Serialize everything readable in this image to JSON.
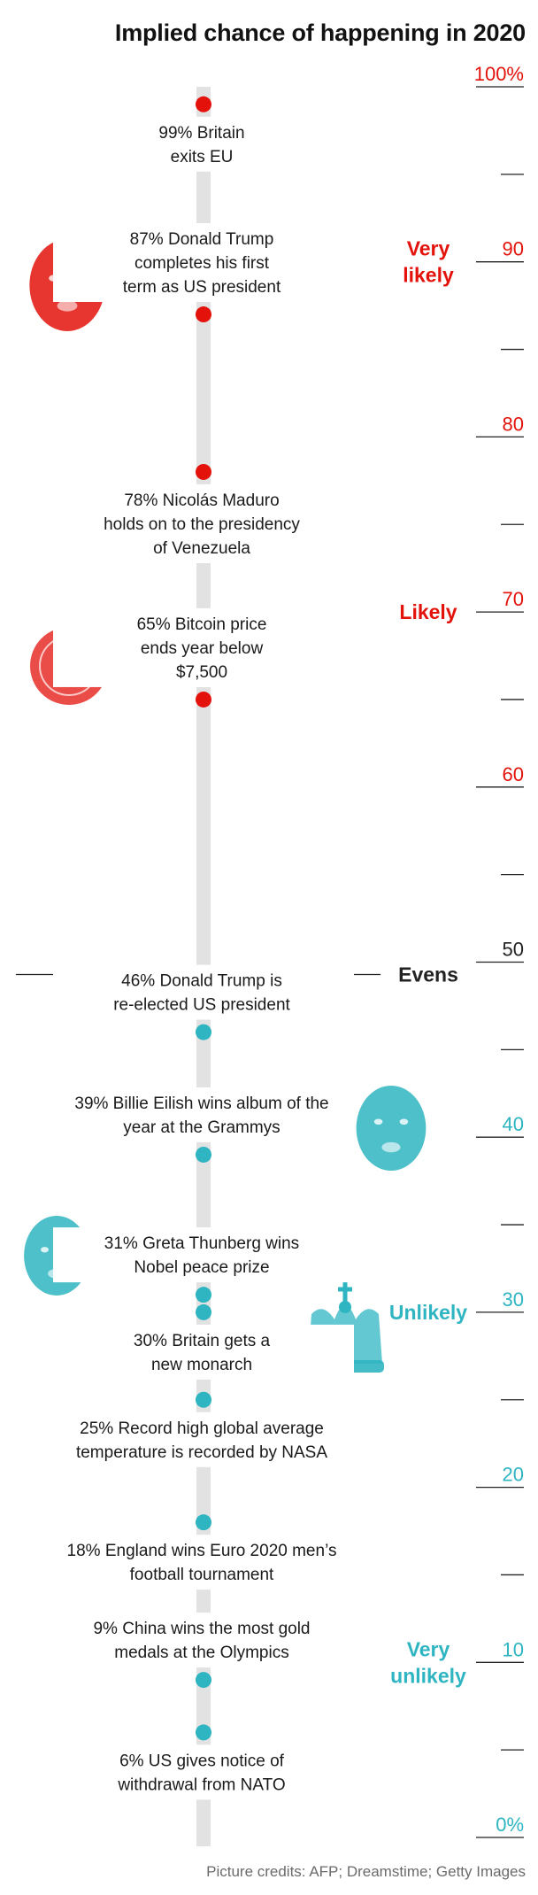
{
  "header": {
    "title": "Implied chance of happening in 2020",
    "credit": "Picture credits: AFP; Dreamstime; Getty Images"
  },
  "colors": {
    "likely": "#e3120b",
    "unlikely": "#2fb5c1",
    "track": "#e2e2e2",
    "axis": "#222222"
  },
  "icons": [
    "donald-trump-photo",
    "bitcoin-coin-photo",
    "billie-eilish-photo",
    "greta-thunberg-photo",
    "crown-photo"
  ],
  "chart_data": {
    "type": "scatter",
    "title": "Implied chance of happening in 2020",
    "ylim": [
      0,
      100
    ],
    "y_ticks": [
      {
        "value": 100,
        "label": "100%"
      },
      {
        "value": 90,
        "label": "90"
      },
      {
        "value": 80,
        "label": "80"
      },
      {
        "value": 70,
        "label": "70"
      },
      {
        "value": 60,
        "label": "60"
      },
      {
        "value": 50,
        "label": "50"
      },
      {
        "value": 40,
        "label": "40"
      },
      {
        "value": 30,
        "label": "30"
      },
      {
        "value": 20,
        "label": "20"
      },
      {
        "value": 10,
        "label": "10"
      },
      {
        "value": 0,
        "label": "0%"
      }
    ],
    "minor_ticks": [
      95,
      85,
      75,
      65,
      55,
      45,
      35,
      25,
      15,
      5
    ],
    "bands": [
      {
        "label": [
          "Very",
          "likely"
        ],
        "value": 90,
        "color": "likely"
      },
      {
        "label": [
          "Likely"
        ],
        "value": 70,
        "color": "likely"
      },
      {
        "label": [
          "Evens"
        ],
        "value": 50,
        "color": "axis"
      },
      {
        "label": [
          "Unlikely"
        ],
        "value": 30,
        "color": "unlikely"
      },
      {
        "label": [
          "Very",
          "unlikely"
        ],
        "value": 10,
        "color": "unlikely"
      }
    ],
    "events": [
      {
        "value": 99,
        "lines": [
          "99% Britain",
          "exits EU"
        ],
        "side": "below"
      },
      {
        "value": 87,
        "lines": [
          "87% Donald Trump",
          "completes his first",
          "term as US president"
        ],
        "side": "above"
      },
      {
        "value": 78,
        "lines": [
          "78% Nicolás Maduro",
          "holds on to the presidency",
          "of Venezuela"
        ],
        "side": "below"
      },
      {
        "value": 65,
        "lines": [
          "65% Bitcoin price",
          "ends year below",
          "$7,500"
        ],
        "side": "above"
      },
      {
        "value": 46,
        "lines": [
          "46% Donald Trump is",
          "re-elected US president"
        ],
        "side": "above"
      },
      {
        "value": 39,
        "lines": [
          "39% Billie Eilish wins album of the",
          "year at the Grammys"
        ],
        "side": "above"
      },
      {
        "value": 31,
        "lines": [
          "31% Greta Thunberg wins",
          "Nobel peace prize"
        ],
        "side": "above"
      },
      {
        "value": 30,
        "lines": [
          "30% Britain gets a",
          "new monarch"
        ],
        "side": "below"
      },
      {
        "value": 25,
        "lines": [
          "25% Record high global average",
          "temperature is recorded by NASA"
        ],
        "side": "below"
      },
      {
        "value": 18,
        "lines": [
          "18% England wins Euro 2020 men’s",
          "football tournament"
        ],
        "side": "below"
      },
      {
        "value": 9,
        "lines": [
          "9% China wins the most gold",
          "medals at the Olympics"
        ],
        "side": "above"
      },
      {
        "value": 6,
        "lines": [
          "6% US gives notice of",
          "withdrawal from NATO"
        ],
        "side": "below"
      }
    ]
  }
}
